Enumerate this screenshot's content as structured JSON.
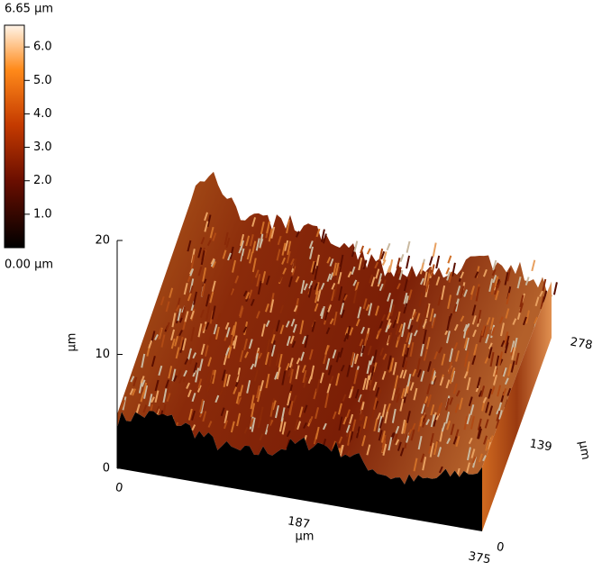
{
  "chart_data": {
    "type": "surface3d",
    "colorbar": {
      "max_label": "6.65 µm",
      "min_label": "0.00 µm",
      "range": [
        0,
        6.65
      ],
      "ticks": [
        {
          "value": 1,
          "label": "1.0"
        },
        {
          "value": 2,
          "label": "2.0"
        },
        {
          "value": 3,
          "label": "3.0"
        },
        {
          "value": 4,
          "label": "4.0"
        },
        {
          "value": 5,
          "label": "5.0"
        },
        {
          "value": 6,
          "label": "6.0"
        }
      ]
    },
    "zlabel": "µm",
    "zlim": [
      0,
      20
    ],
    "zticks": [
      0,
      10,
      20
    ],
    "xlabel": "µm",
    "xlim": [
      0,
      375
    ],
    "xticks": [
      0,
      187,
      375
    ],
    "ylabel": "µm",
    "ylim": [
      0,
      278
    ],
    "yticks": [
      0,
      139,
      278
    ]
  }
}
